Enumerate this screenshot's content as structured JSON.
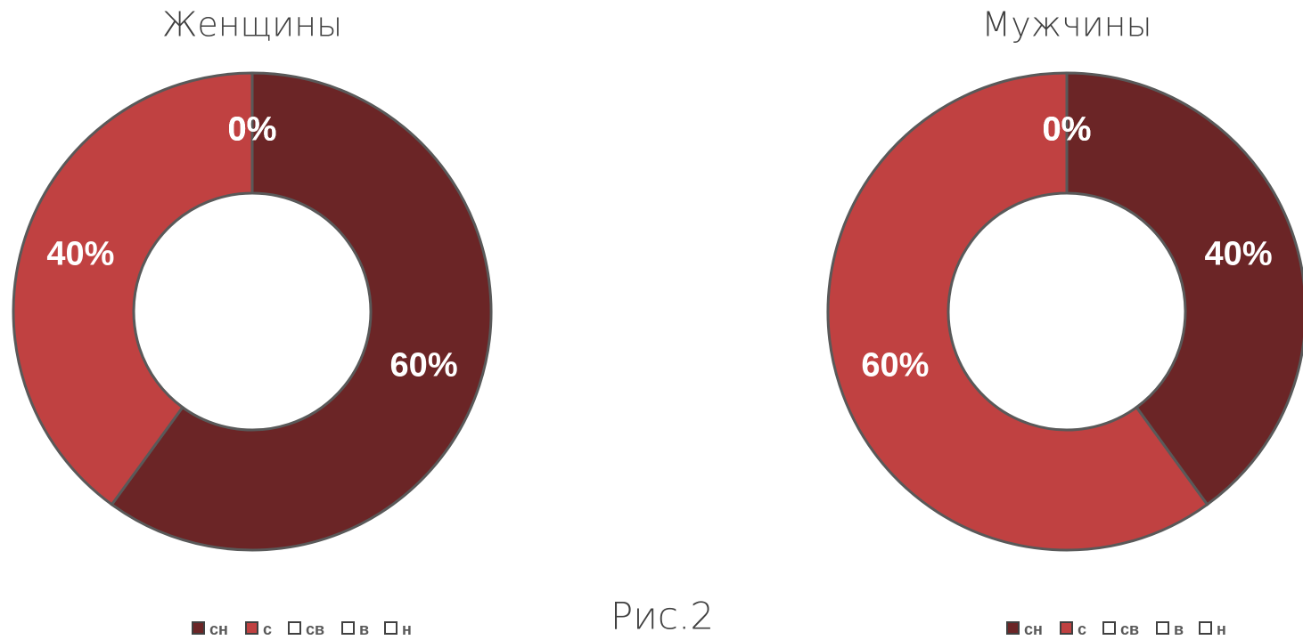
{
  "chart_data": [
    {
      "type": "donut",
      "title": "Женщины",
      "categories": [
        "сн",
        "с",
        "св",
        "в",
        "н"
      ],
      "values": [
        60,
        40,
        0,
        0,
        0
      ],
      "value_labels": [
        "60%",
        "40%",
        "0%",
        "0%",
        "0%"
      ],
      "colors": [
        "#6b2526",
        "#c04141",
        "#ffffff",
        "#ffffff",
        "#ffffff"
      ],
      "legend": "bottom"
    },
    {
      "type": "donut",
      "title": "Мужчины",
      "categories": [
        "сн",
        "с",
        "св",
        "в",
        "н"
      ],
      "values": [
        40,
        60,
        0,
        0,
        0
      ],
      "value_labels": [
        "40%",
        "60%",
        "0%",
        "0%",
        "0%"
      ],
      "colors": [
        "#6b2526",
        "#c04141",
        "#ffffff",
        "#ffffff",
        "#ffffff"
      ],
      "legend": "bottom"
    }
  ],
  "caption": "Рис.2"
}
